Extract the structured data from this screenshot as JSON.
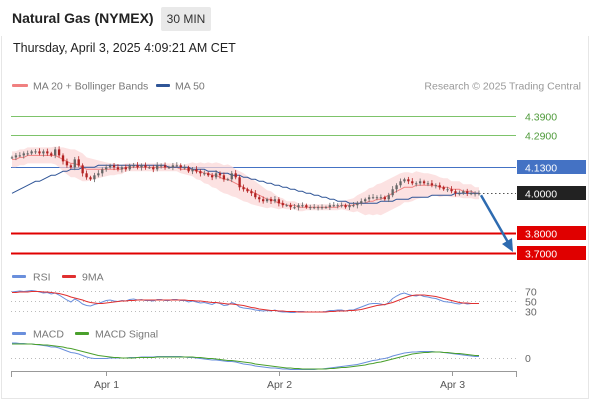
{
  "header": {
    "title": "Natural Gas (NYMEX)",
    "interval_label": "30 MIN",
    "timestamp": "Thursday, April 3, 2025 4:09:21 AM CET"
  },
  "colors": {
    "bollinger": "#f08080",
    "ma50": "#2f5597",
    "resistance": "#7dc36a",
    "support": "#e00000",
    "pivot": "#4472c4",
    "current": "#222222",
    "rsi": "#6a8fdc",
    "rsi_ma": "#e03030",
    "macd": "#6a8fdc",
    "macd_signal": "#4aa02c",
    "forecast_arrow": "#2e6bb0",
    "candle_up": "#666666",
    "candle_down": "#b22222"
  },
  "chart_data": [
    {
      "type": "line",
      "panel": "price",
      "legend": [
        {
          "label": "MA 20 + Bollinger Bands",
          "color": "#f08080"
        },
        {
          "label": "MA 50",
          "color": "#2f5597"
        }
      ],
      "attribution": "Research © 2025 Trading Central",
      "price_range": [
        3.635,
        4.508
      ],
      "x_ticks": [
        "Apr 1",
        "Apr 2",
        "Apr 3"
      ],
      "levels": [
        {
          "label": "4.3900",
          "value": 4.39,
          "kind": "resistance"
        },
        {
          "label": "4.2900",
          "value": 4.29,
          "kind": "resistance"
        },
        {
          "label": "4.1300",
          "value": 4.13,
          "kind": "pivot"
        },
        {
          "label": "4.0000",
          "value": 4.0,
          "kind": "current"
        },
        {
          "label": "3.8000",
          "value": 3.8,
          "kind": "support"
        },
        {
          "label": "3.7000",
          "value": 3.7,
          "kind": "support"
        }
      ],
      "close": [
        4.18,
        4.19,
        4.19,
        4.2,
        4.2,
        4.21,
        4.21,
        4.2,
        4.21,
        4.2,
        4.19,
        4.22,
        4.19,
        4.16,
        4.14,
        4.13,
        4.17,
        4.14,
        4.1,
        4.08,
        4.07,
        4.09,
        4.1,
        4.12,
        4.13,
        4.14,
        4.13,
        4.12,
        4.13,
        4.12,
        4.14,
        4.14,
        4.13,
        4.14,
        4.13,
        4.13,
        4.12,
        4.14,
        4.14,
        4.13,
        4.13,
        4.14,
        4.14,
        4.13,
        4.13,
        4.11,
        4.12,
        4.11,
        4.1,
        4.1,
        4.09,
        4.08,
        4.1,
        4.09,
        4.07,
        4.07,
        4.1,
        4.08,
        4.03,
        4.02,
        4.01,
        4.0,
        3.98,
        3.97,
        3.96,
        3.97,
        3.96,
        3.97,
        3.95,
        3.94,
        3.94,
        3.93,
        3.93,
        3.94,
        3.94,
        3.93,
        3.93,
        3.93,
        3.93,
        3.93,
        3.93,
        3.94,
        3.94,
        3.94,
        3.94,
        3.93,
        3.94,
        3.94,
        3.95,
        3.96,
        3.97,
        3.98,
        3.98,
        3.98,
        3.98,
        3.97,
        3.99,
        4.02,
        4.04,
        4.06,
        4.07,
        4.06,
        4.05,
        4.05,
        4.06,
        4.05,
        4.05,
        4.04,
        4.04,
        4.03,
        4.02,
        4.02,
        4.01,
        4.0,
        4.0,
        4.01,
        4.0,
        4.0,
        4.0,
        4.0
      ],
      "ma20": [
        4.17,
        4.17,
        4.18,
        4.18,
        4.19,
        4.19,
        4.19,
        4.19,
        4.19,
        4.19,
        4.19,
        4.19,
        4.18,
        4.17,
        4.16,
        4.15,
        4.15,
        4.14,
        4.13,
        4.12,
        4.12,
        4.12,
        4.12,
        4.12,
        4.12,
        4.12,
        4.12,
        4.12,
        4.12,
        4.13,
        4.13,
        4.13,
        4.13,
        4.13,
        4.13,
        4.13,
        4.13,
        4.13,
        4.13,
        4.13,
        4.13,
        4.13,
        4.13,
        4.12,
        4.12,
        4.12,
        4.12,
        4.11,
        4.11,
        4.1,
        4.1,
        4.09,
        4.09,
        4.08,
        4.07,
        4.07,
        4.06,
        4.05,
        4.04,
        4.03,
        4.02,
        4.01,
        4.0,
        3.99,
        3.98,
        3.97,
        3.97,
        3.96,
        3.95,
        3.95,
        3.94,
        3.94,
        3.94,
        3.93,
        3.93,
        3.93,
        3.93,
        3.93,
        3.93,
        3.93,
        3.93,
        3.93,
        3.93,
        3.93,
        3.94,
        3.94,
        3.94,
        3.94,
        3.95,
        3.95,
        3.95,
        3.96,
        3.96,
        3.97,
        3.97,
        3.98,
        3.99,
        4.0,
        4.01,
        4.02,
        4.03,
        4.03,
        4.03,
        4.04,
        4.04,
        4.04,
        4.04,
        4.04,
        4.04,
        4.03,
        4.03,
        4.03,
        4.02,
        4.02,
        4.02,
        4.01,
        4.01,
        4.01,
        4.0,
        4.0
      ],
      "bb_half_width": [
        0.04,
        0.04,
        0.04,
        0.04,
        0.04,
        0.04,
        0.04,
        0.04,
        0.04,
        0.04,
        0.04,
        0.045,
        0.05,
        0.06,
        0.065,
        0.07,
        0.07,
        0.07,
        0.07,
        0.06,
        0.055,
        0.05,
        0.045,
        0.04,
        0.035,
        0.03,
        0.03,
        0.025,
        0.025,
        0.02,
        0.02,
        0.02,
        0.02,
        0.02,
        0.02,
        0.02,
        0.02,
        0.02,
        0.02,
        0.02,
        0.02,
        0.02,
        0.02,
        0.02,
        0.025,
        0.03,
        0.035,
        0.04,
        0.045,
        0.05,
        0.055,
        0.06,
        0.065,
        0.07,
        0.07,
        0.075,
        0.075,
        0.07,
        0.07,
        0.07,
        0.065,
        0.065,
        0.06,
        0.055,
        0.05,
        0.045,
        0.04,
        0.035,
        0.03,
        0.025,
        0.02,
        0.02,
        0.02,
        0.02,
        0.02,
        0.015,
        0.015,
        0.015,
        0.015,
        0.015,
        0.015,
        0.015,
        0.015,
        0.015,
        0.02,
        0.025,
        0.03,
        0.035,
        0.04,
        0.05,
        0.06,
        0.065,
        0.07,
        0.075,
        0.08,
        0.08,
        0.08,
        0.08,
        0.08,
        0.08,
        0.075,
        0.075,
        0.07,
        0.07,
        0.065,
        0.06,
        0.06,
        0.055,
        0.05,
        0.05,
        0.045,
        0.045,
        0.04,
        0.04,
        0.04,
        0.035,
        0.035,
        0.035,
        0.03,
        0.03
      ],
      "ma50": [
        4.0,
        4.01,
        4.02,
        4.03,
        4.04,
        4.05,
        4.06,
        4.06,
        4.07,
        4.08,
        4.09,
        4.09,
        4.1,
        4.11,
        4.11,
        4.12,
        4.12,
        4.12,
        4.13,
        4.13,
        4.13,
        4.13,
        4.14,
        4.14,
        4.14,
        4.14,
        4.14,
        4.14,
        4.14,
        4.14,
        4.14,
        4.14,
        4.14,
        4.14,
        4.14,
        4.14,
        4.14,
        4.14,
        4.14,
        4.14,
        4.13,
        4.13,
        4.13,
        4.13,
        4.13,
        4.13,
        4.12,
        4.12,
        4.12,
        4.12,
        4.11,
        4.11,
        4.11,
        4.1,
        4.1,
        4.1,
        4.09,
        4.09,
        4.09,
        4.08,
        4.08,
        4.07,
        4.07,
        4.06,
        4.06,
        4.05,
        4.05,
        4.04,
        4.04,
        4.03,
        4.03,
        4.02,
        4.02,
        4.01,
        4.01,
        4.0,
        4.0,
        3.99,
        3.99,
        3.98,
        3.98,
        3.97,
        3.97,
        3.96,
        3.96,
        3.96,
        3.95,
        3.95,
        3.95,
        3.95,
        3.95,
        3.95,
        3.95,
        3.95,
        3.96,
        3.96,
        3.96,
        3.96,
        3.97,
        3.97,
        3.97,
        3.97,
        3.98,
        3.98,
        3.98,
        3.98,
        3.98,
        3.99,
        3.99,
        3.99,
        3.99,
        3.99,
        3.99,
        4.0,
        4.0,
        4.0,
        4.0,
        4.0,
        4.0,
        4.0
      ],
      "forecast": {
        "from": 4.0,
        "to": 3.7
      }
    },
    {
      "type": "line",
      "panel": "rsi",
      "legend": [
        {
          "label": "RSI",
          "color": "#6a8fdc"
        },
        {
          "label": "9MA",
          "color": "#e03030"
        }
      ],
      "y_range": [
        20,
        80
      ],
      "y_ticks": [
        "70",
        "50",
        "30"
      ],
      "tick_values": [
        70,
        50,
        30
      ],
      "rsi": [
        68,
        69,
        70,
        69,
        70,
        71,
        70,
        68,
        66,
        67,
        64,
        66,
        62,
        57,
        52,
        48,
        54,
        50,
        44,
        41,
        40,
        43,
        45,
        48,
        51,
        52,
        50,
        49,
        51,
        50,
        53,
        54,
        52,
        53,
        51,
        51,
        50,
        53,
        53,
        51,
        51,
        53,
        53,
        51,
        51,
        48,
        50,
        48,
        46,
        47,
        45,
        43,
        47,
        45,
        41,
        42,
        47,
        44,
        38,
        36,
        35,
        34,
        32,
        31,
        30,
        31,
        30,
        32,
        29,
        28,
        28,
        27,
        27,
        29,
        29,
        28,
        28,
        28,
        28,
        28,
        29,
        31,
        31,
        32,
        32,
        30,
        32,
        32,
        35,
        38,
        41,
        44,
        45,
        45,
        44,
        42,
        47,
        55,
        60,
        64,
        66,
        63,
        61,
        60,
        62,
        59,
        58,
        56,
        55,
        52,
        49,
        48,
        47,
        45,
        44,
        46,
        44,
        45,
        45,
        45
      ],
      "ma9": [
        67,
        67,
        68,
        68,
        68,
        69,
        69,
        69,
        68,
        68,
        67,
        66,
        65,
        63,
        61,
        58,
        56,
        54,
        52,
        49,
        47,
        46,
        45,
        45,
        46,
        47,
        48,
        49,
        50,
        50,
        51,
        51,
        52,
        52,
        52,
        52,
        52,
        52,
        52,
        52,
        52,
        52,
        52,
        52,
        52,
        51,
        51,
        50,
        50,
        49,
        48,
        47,
        47,
        46,
        45,
        44,
        44,
        43,
        42,
        41,
        39,
        37,
        36,
        34,
        33,
        32,
        31,
        31,
        30,
        30,
        29,
        29,
        29,
        28,
        28,
        28,
        28,
        28,
        28,
        28,
        28,
        29,
        29,
        30,
        30,
        30,
        31,
        31,
        32,
        33,
        35,
        37,
        39,
        41,
        42,
        43,
        45,
        47,
        50,
        53,
        56,
        59,
        61,
        62,
        62,
        62,
        61,
        60,
        59,
        57,
        55,
        53,
        51,
        49,
        47,
        46,
        46,
        45,
        45,
        45
      ]
    },
    {
      "type": "line",
      "panel": "macd",
      "legend": [
        {
          "label": "MACD",
          "color": "#6a8fdc"
        },
        {
          "label": "MACD Signal",
          "color": "#4aa02c"
        }
      ],
      "y_ticks": [
        "0"
      ],
      "zero": 0,
      "y_range": [
        -0.04,
        0.04
      ],
      "macd": [
        0.03,
        0.03,
        0.029,
        0.029,
        0.028,
        0.028,
        0.027,
        0.026,
        0.025,
        0.024,
        0.022,
        0.022,
        0.02,
        0.017,
        0.014,
        0.011,
        0.01,
        0.008,
        0.005,
        0.002,
        0.0,
        -0.001,
        -0.001,
        -0.001,
        -0.001,
        0.0,
        0.0,
        0.0,
        0.0,
        0.0,
        0.001,
        0.001,
        0.001,
        0.002,
        0.002,
        0.002,
        0.002,
        0.003,
        0.003,
        0.003,
        0.003,
        0.003,
        0.003,
        0.003,
        0.002,
        0.001,
        0.001,
        0.0,
        -0.001,
        -0.002,
        -0.003,
        -0.004,
        -0.004,
        -0.005,
        -0.006,
        -0.007,
        -0.007,
        -0.008,
        -0.01,
        -0.012,
        -0.013,
        -0.014,
        -0.016,
        -0.017,
        -0.018,
        -0.019,
        -0.02,
        -0.02,
        -0.021,
        -0.022,
        -0.022,
        -0.023,
        -0.023,
        -0.023,
        -0.023,
        -0.023,
        -0.023,
        -0.023,
        -0.022,
        -0.022,
        -0.021,
        -0.02,
        -0.019,
        -0.018,
        -0.017,
        -0.016,
        -0.015,
        -0.014,
        -0.013,
        -0.011,
        -0.009,
        -0.007,
        -0.005,
        -0.004,
        -0.002,
        -0.001,
        0.001,
        0.004,
        0.006,
        0.008,
        0.01,
        0.011,
        0.012,
        0.012,
        0.013,
        0.013,
        0.013,
        0.013,
        0.012,
        0.012,
        0.011,
        0.01,
        0.009,
        0.008,
        0.007,
        0.006,
        0.005,
        0.004,
        0.003,
        0.003
      ],
      "signal": [
        0.028,
        0.028,
        0.028,
        0.028,
        0.028,
        0.028,
        0.027,
        0.027,
        0.026,
        0.026,
        0.025,
        0.024,
        0.023,
        0.022,
        0.02,
        0.019,
        0.017,
        0.015,
        0.013,
        0.011,
        0.009,
        0.007,
        0.005,
        0.004,
        0.003,
        0.002,
        0.001,
        0.001,
        0.0,
        0.0,
        0.0,
        0.0,
        0.001,
        0.001,
        0.001,
        0.001,
        0.001,
        0.002,
        0.002,
        0.002,
        0.002,
        0.002,
        0.002,
        0.002,
        0.002,
        0.002,
        0.002,
        0.001,
        0.001,
        0.0,
        -0.001,
        -0.001,
        -0.002,
        -0.003,
        -0.004,
        -0.005,
        -0.005,
        -0.006,
        -0.007,
        -0.008,
        -0.009,
        -0.01,
        -0.012,
        -0.013,
        -0.014,
        -0.015,
        -0.016,
        -0.017,
        -0.018,
        -0.019,
        -0.02,
        -0.02,
        -0.021,
        -0.021,
        -0.022,
        -0.022,
        -0.022,
        -0.022,
        -0.022,
        -0.022,
        -0.022,
        -0.021,
        -0.021,
        -0.02,
        -0.019,
        -0.019,
        -0.018,
        -0.017,
        -0.016,
        -0.015,
        -0.014,
        -0.012,
        -0.011,
        -0.009,
        -0.008,
        -0.006,
        -0.004,
        -0.002,
        0.0,
        0.002,
        0.004,
        0.006,
        0.008,
        0.009,
        0.01,
        0.011,
        0.011,
        0.012,
        0.012,
        0.012,
        0.011,
        0.011,
        0.01,
        0.009,
        0.009,
        0.008,
        0.007,
        0.006,
        0.005,
        0.005
      ]
    }
  ]
}
